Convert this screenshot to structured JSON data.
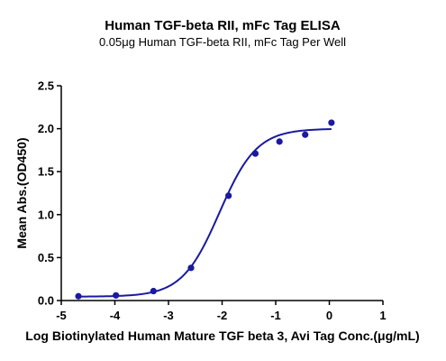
{
  "chart_data": {
    "type": "scatter",
    "title": "Human TGF-beta RII, mFc Tag ELISA",
    "subtitle": "0.05μg Human TGF-beta RII, mFc Tag Per Well",
    "xlabel": "Log Biotinylated  Human Mature TGF beta 3, Avi Tag Conc.(μg/mL)",
    "ylabel": "Mean Abs.(OD450)",
    "xlim": [
      -5,
      1
    ],
    "ylim": [
      0,
      2.5
    ],
    "xticks": [
      "-5",
      "-4",
      "-3",
      "-2",
      "-1",
      "0",
      "1"
    ],
    "yticks": [
      "0.0",
      "0.5",
      "1.0",
      "1.5",
      "2.0",
      "2.5"
    ],
    "grid": false,
    "legend": "none",
    "colors": {
      "series": "#1a1aa0",
      "axis": "#000000"
    },
    "series": [
      {
        "points": {
          "x": [
            -4.68,
            -3.98,
            -3.28,
            -2.58,
            -1.88,
            -1.38,
            -0.93,
            -0.45,
            0.04
          ],
          "y": [
            0.05,
            0.06,
            0.11,
            0.38,
            1.22,
            1.71,
            1.85,
            1.93,
            2.07
          ]
        },
        "fit": {
          "model": "4PL",
          "bottom": 0.045,
          "top": 2.0,
          "logEC50": -2.05,
          "hill": 1.25
        }
      }
    ]
  }
}
